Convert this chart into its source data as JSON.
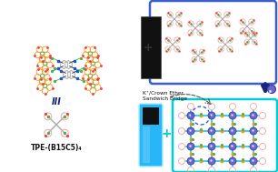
{
  "title": "TPE-(B15C5)₄",
  "label_k_crown": "K⁺/Crown Ether\nSandwich Bridge",
  "bg_color": "#ffffff",
  "box1_edgecolor": "#3a5fcd",
  "box2_edgecolor": "#00cdd4",
  "crown_orange": "#f5961d",
  "crown_green": "#4caf50",
  "crown_red": "#e84040",
  "link_blue": "#1a56c4",
  "link_black": "#111111",
  "k_ion_color": "#5a5aaa",
  "k_ion_edge": "#3939aa",
  "arrow_color": "#1a237e",
  "plus_color_black": "#555555",
  "plus_color_cyan": "#00cdd4",
  "black_rect_color": "#111111",
  "tube_blue": "#29b6f6",
  "tube_glow": "#80d8ff",
  "tpe_arm_gray": "#aaaaaa",
  "mol_center_gray": "#b8b8b8",
  "mol_link_black": "#333333",
  "dashed_circle_color": "#2255cc",
  "III_color": "#1a237e"
}
